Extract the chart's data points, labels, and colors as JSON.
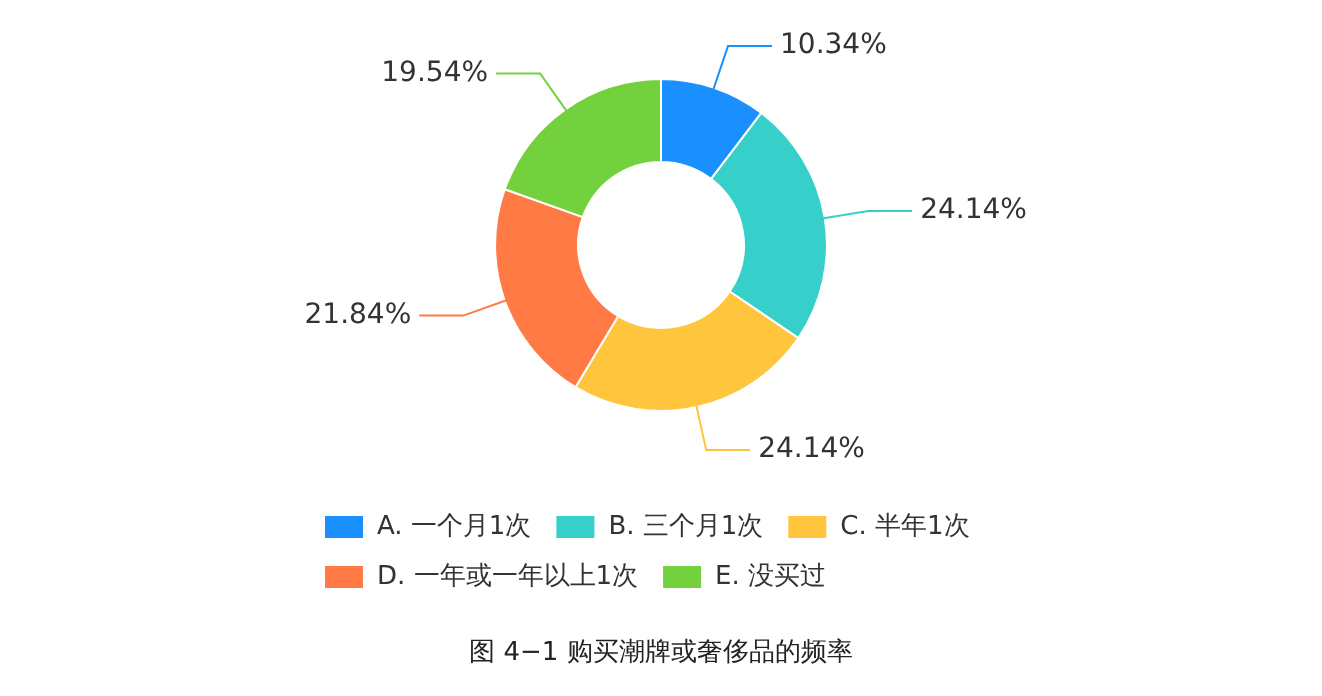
{
  "chart_data": {
    "type": "donut",
    "title": "图 4−1 购买潮牌或奢侈品的频率",
    "categories": [
      "A. 一个月1次",
      "B. 三个月1次",
      "C. 半年1次",
      "D. 一年或一年以上1次",
      "E. 没买过"
    ],
    "values": [
      10.34,
      24.14,
      24.14,
      21.84,
      19.54
    ],
    "value_labels": [
      "10.34%",
      "24.14%",
      "24.14%",
      "21.84%",
      "19.54%"
    ],
    "colors": [
      "#1a90ff",
      "#36cfc9",
      "#ffc53d",
      "#ff7a45",
      "#73d13d"
    ],
    "legend": "bottom"
  }
}
